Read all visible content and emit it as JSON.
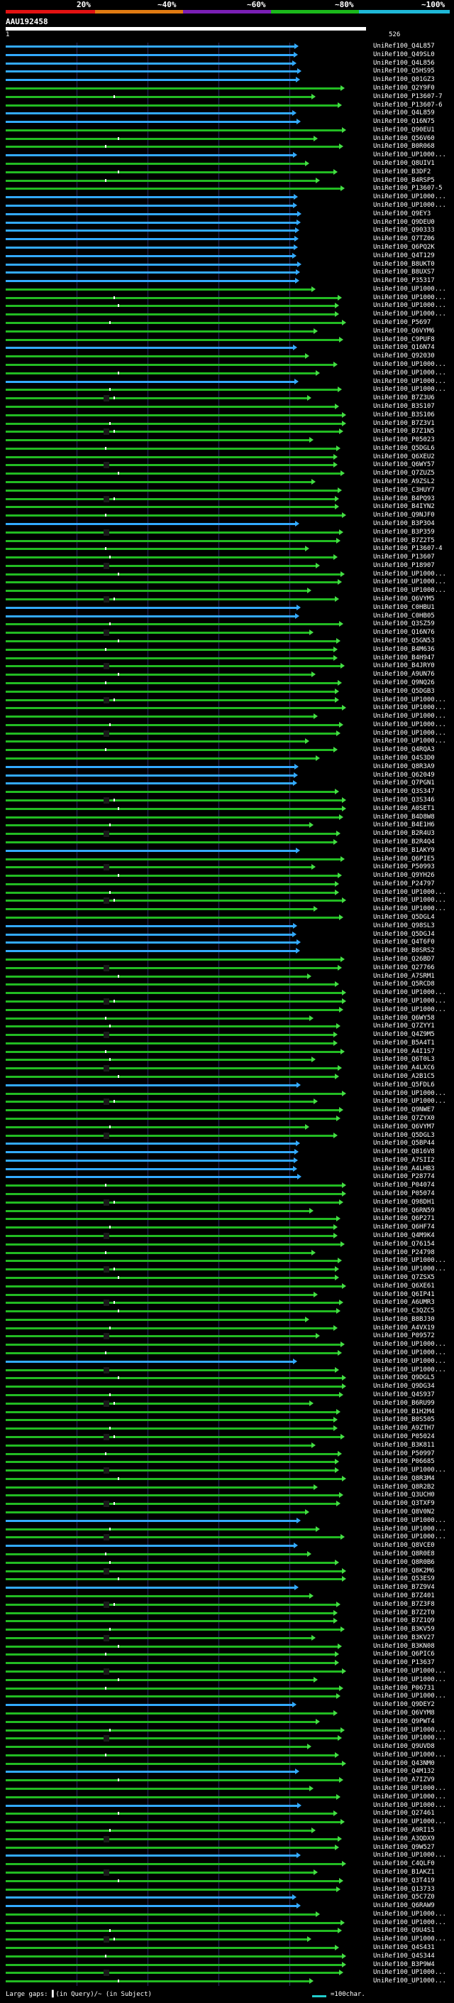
{
  "header": {
    "percent_labels": [
      "20%",
      "~40%",
      "~60%",
      "~80%",
      "~100%"
    ],
    "band_colors": [
      "#e21212",
      "#e07b12",
      "#7a1fb5",
      "#1bb81b",
      "#1fb8d8"
    ],
    "query_id": "AAU192458",
    "query_start": "1",
    "query_end": "526"
  },
  "colors": {
    "blue": "#33aaff",
    "green": "#22bb22",
    "arrow_green": "#44dd44",
    "cyan": "#22cccc"
  },
  "hits": [
    "UniRef100_Q4L857",
    "UniRef100_Q49SL0",
    "UniRef100_Q4L856",
    "UniRef100_Q5HS95",
    "UniRef100_Q01GZ3",
    "UniRef100_Q2Y9F0",
    "UniRef100_P13607-7",
    "UniRef100_P13607-6",
    "UniRef100_Q4L859",
    "UniRef100_Q16N75",
    "UniRef100_Q90EU1",
    "UniRef100_Q56V60",
    "UniRef100_B0R068",
    "UniRef100_UP1000...",
    "UniRef100_Q8UIV1",
    "UniRef100_B3DF2",
    "UniRef100_B4RSP5",
    "UniRef100_P13607-5",
    "UniRef100_UP1000...",
    "UniRef100_UP1000...",
    "UniRef100_Q9EY3",
    "UniRef100_Q9DEU0",
    "UniRef100_Q90333",
    "UniRef100_Q7TZ06",
    "UniRef100_Q6PQ2K",
    "UniRef100_Q4T129",
    "UniRef100_B8UKT0",
    "UniRef100_B8UXS7",
    "UniRef100_P35317",
    "UniRef100_UP1000...",
    "UniRef100_UP1000...",
    "UniRef100_UP1000...",
    "UniRef100_UP1000...",
    "UniRef100_P5697",
    "UniRef100_Q6VYM6",
    "UniRef100_C9PUF8",
    "UniRef100_Q16N74",
    "UniRef100_Q92030",
    "UniRef100_UP1000...",
    "UniRef100_UP1000...",
    "UniRef100_UP1000...",
    "UniRef100_UP1000...",
    "UniRef100_B7Z3U6",
    "UniRef100_B3S107",
    "UniRef100_B3S106",
    "UniRef100_B7Z3V1",
    "UniRef100_B7Z1N5",
    "UniRef100_P05023",
    "UniRef100_Q5DGL6",
    "UniRef100_Q6XEU2",
    "UniRef100_Q6WY57",
    "UniRef100_Q7ZUZ5",
    "UniRef100_A9ZSL2",
    "UniRef100_C3HUY7",
    "UniRef100_B4PQ93",
    "UniRef100_B4IYN2",
    "UniRef100_Q9NJF0",
    "UniRef100_B3P3O4",
    "UniRef100_B3P359",
    "UniRef100_B7Z2T5",
    "UniRef100_P13607-4",
    "UniRef100_P13607",
    "UniRef100_P18907",
    "UniRef100_UP1000...",
    "UniRef100_UP1000...",
    "UniRef100_UP1000...",
    "UniRef100_Q6VYM5",
    "UniRef100_C0HBU1",
    "UniRef100_C0HB05",
    "UniRef100_Q3SZ59",
    "UniRef100_Q16N76",
    "UniRef100_Q5GN53",
    "UniRef100_B4M636",
    "UniRef100_B4H947",
    "UniRef100_B4JRY0",
    "UniRef100_A9UN76",
    "UniRef100_Q9NQ26",
    "UniRef100_Q5DGB3",
    "UniRef100_UP1000...",
    "UniRef100_UP1000...",
    "UniRef100_UP1000...",
    "UniRef100_UP1000...",
    "UniRef100_UP1000...",
    "UniRef100_UP1000...",
    "UniRef100_Q4RQA3",
    "UniRef100_Q4S3D0",
    "UniRef100_Q8R3A9",
    "UniRef100_Q62049",
    "UniRef100_Q7PGN1",
    "UniRef100_Q3S347",
    "UniRef100_Q3S346",
    "UniRef100_A0SET1",
    "UniRef100_B4D8W8",
    "UniRef100_B4E1H6",
    "UniRef100_B2R4U3",
    "UniRef100_B2R4Q4",
    "UniRef100_B1AKY9",
    "UniRef100_Q6PIE5",
    "UniRef100_P50993",
    "UniRef100_Q9YH26",
    "UniRef100_P24797",
    "UniRef100_UP1000...",
    "UniRef100_UP1000...",
    "UniRef100_UP1000...",
    "UniRef100_Q5DGL4",
    "UniRef100_Q98SL3",
    "UniRef100_Q5DGJ4",
    "UniRef100_Q4T6F0",
    "UniRef100_B0SRS2",
    "UniRef100_Q26BD7",
    "UniRef100_Q27766",
    "UniRef100_A7SRM1",
    "UniRef100_Q5RCD8",
    "UniRef100_UP1000...",
    "UniRef100_UP1000...",
    "UniRef100_UP1000...",
    "UniRef100_Q6WY58",
    "UniRef100_Q7ZYY1",
    "UniRef100_Q4Z9M5",
    "UniRef100_B5A4T1",
    "UniRef100_A4I1S7",
    "UniRef100_Q6T0L3",
    "UniRef100_A4LXC6",
    "UniRef100_A2B1C5",
    "UniRef100_Q5FDL6",
    "UniRef100_UP1000...",
    "UniRef100_UP1000...",
    "UniRef100_Q9NWE7",
    "UniRef100_Q7ZYX0",
    "UniRef100_Q6VYM7",
    "UniRef100_Q5DGL3",
    "UniRef100_Q5BP44",
    "UniRef100_Q816V8",
    "UniRef100_A7SII2",
    "UniRef100_A4LHB3",
    "UniRef100_P28774",
    "UniRef100_P04074",
    "UniRef100_P05074",
    "UniRef100_Q98DH1",
    "UniRef100_Q6RN59",
    "UniRef100_Q6P271",
    "UniRef100_Q6HF74",
    "UniRef100_Q4M9K4",
    "UniRef100_Q76154",
    "UniRef100_P24798",
    "UniRef100_UP1000...",
    "UniRef100_UP1000...",
    "UniRef100_Q7ZSX5",
    "UniRef100_Q6XE61",
    "UniRef100_Q6IP41",
    "UniRef100_A6UMR3",
    "UniRef100_C3QZC5",
    "UniRef100_B8BJ30",
    "UniRef100_A4VX19",
    "UniRef100_P09572",
    "UniRef100_UP1000...",
    "UniRef100_UP1000...",
    "UniRef100_UP1000...",
    "UniRef100_UP1000...",
    "UniRef100_Q9DGL5",
    "UniRef100_Q9DG34",
    "UniRef100_Q4S937",
    "UniRef100_B6RU99",
    "UniRef100_B1H2M4",
    "UniRef100_B0S505",
    "UniRef100_A9ZTH7",
    "UniRef100_P05024",
    "UniRef100_B3K811",
    "UniRef100_P50997",
    "UniRef100_P06685",
    "UniRef100_UP1000...",
    "UniRef100_Q8R3M4",
    "UniRef100_Q8R2B2",
    "UniRef100_Q3UCH0",
    "UniRef100_Q3TXF9",
    "UniRef100_Q8V0N2",
    "UniRef100_UP1000...",
    "UniRef100_UP1000...",
    "UniRef100_UP1000...",
    "UniRef100_Q8VCE0",
    "UniRef100_Q8R0E8",
    "UniRef100_Q8R0B6",
    "UniRef100_Q8K2M6",
    "UniRef100_Q53ES9",
    "UniRef100_B7Z9V4",
    "UniRef100_B7Z401",
    "UniRef100_B7Z3F8",
    "UniRef100_B7Z2T0",
    "UniRef100_B7Z1Q9",
    "UniRef100_B3KV59",
    "UniRef100_B3KV27",
    "UniRef100_B3KN08",
    "UniRef100_Q6PIC6",
    "UniRef100_P13637",
    "UniRef100_UP1000...",
    "UniRef100_UP1000...",
    "UniRef100_P06731",
    "UniRef100_UP1000...",
    "UniRef100_Q9DEY2",
    "UniRef100_Q6VYM8",
    "UniRef100_Q9PWT4",
    "UniRef100_UP1000...",
    "UniRef100_UP1000...",
    "UniRef100_Q9UVD8",
    "UniRef100_UP1000...",
    "UniRef100_Q43NM0",
    "UniRef100_Q4M132",
    "UniRef100_A7IZV9",
    "UniRef100_UP1000...",
    "UniRef100_UP1000...",
    "UniRef100_UP1000...",
    "UniRef100_Q27461",
    "UniRef100_UP1000...",
    "UniRef100_A9RI15",
    "UniRef100_A3QDX9",
    "UniRef100_Q9W527",
    "UniRef100_UP1000...",
    "UniRef100_C4QLF0",
    "UniRef100_B1AKZ1",
    "UniRef100_Q3T419",
    "UniRef100_Q13733",
    "UniRef100_Q5C7Z0",
    "UniRef100_Q6RAW9",
    "UniRef100_UP1000...",
    "UniRef100_UP1000...",
    "UniRef100_Q9U4S1",
    "UniRef100_UP1000...",
    "UniRef100_Q4S431",
    "UniRef100_Q4S344",
    "UniRef100_B3P9W4",
    "UniRef100_UP1000...",
    "UniRef100_UP1000..."
  ],
  "legend": {
    "gaps_text": "Large gaps: ▌(in Query)/~ (in Subject)",
    "scale_text": "=100char."
  }
}
